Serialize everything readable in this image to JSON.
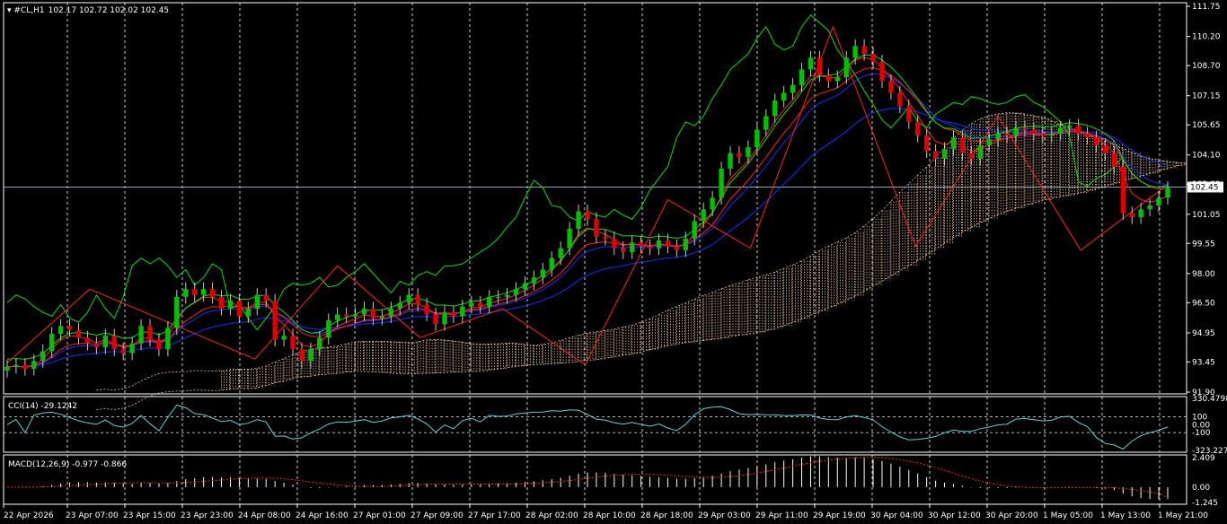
{
  "header": {
    "symbol_label": "#CL,H1",
    "ohlc": "102.17 102.72 102.02 102.45"
  },
  "main_pane": {
    "price_axis_labels": [
      "111.75",
      "110.20",
      "108.70",
      "107.15",
      "105.65",
      "104.10",
      "102.60",
      "101.05",
      "99.55",
      "98.00",
      "96.50",
      "94.95",
      "93.45",
      "91.90"
    ],
    "current_price_label": "102.45"
  },
  "cci_pane": {
    "label": "CCI(14) -29.1242",
    "axis_labels": [
      "330.4798",
      "100",
      "0.00",
      "-100",
      "-323.227"
    ]
  },
  "macd_pane": {
    "label": "MACD(12,26,9) -0.977 -0.866",
    "axis_labels": [
      "2.409",
      "0.00",
      "-1.245"
    ]
  },
  "time_axis_labels": [
    "22 Apr 2026",
    "23 Apr 07:00",
    "23 Apr 15:00",
    "23 Apr 23:00",
    "24 Apr 08:00",
    "24 Apr 16:00",
    "27 Apr 01:00",
    "27 Apr 09:00",
    "27 Apr 17:00",
    "28 Apr 02:00",
    "28 Apr 10:00",
    "28 Apr 18:00",
    "29 Apr 03:00",
    "29 Apr 11:00",
    "29 Apr 19:00",
    "30 Apr 04:00",
    "30 Apr 12:00",
    "30 Apr 20:00",
    "1 May 05:00",
    "1 May 13:00",
    "1 May 21:00"
  ],
  "colors": {
    "background": "#000000",
    "grid": "#ffffff",
    "bull_candle": "#00c000",
    "bear_candle": "#e00000",
    "chikou_green": "#00e000",
    "red_line": "#ff2020",
    "blue_line": "#1030ff",
    "cloud": "#f4c89a",
    "cci_line": "#5fd3d3",
    "macd_hist": "#ffffff",
    "macd_signal": "#ff2020"
  },
  "chart_data": {
    "type": "candlestick",
    "title": "#CL,H1",
    "timeframe": "H1",
    "ylim": [
      91.9,
      111.75
    ],
    "last_price": 102.45,
    "ohlc_last": {
      "open": 102.17,
      "high": 102.72,
      "low": 102.02,
      "close": 102.45
    },
    "zigzag_price_points": [
      93.4,
      97.2,
      95.4,
      93.6,
      98.4,
      94.7,
      96.2,
      93.3,
      101.8,
      99.3,
      110.7,
      99.4,
      106.1,
      99.2,
      102.4
    ],
    "closes": [
      93.2,
      93.3,
      93.1,
      93.5,
      94.0,
      94.9,
      95.3,
      95.1,
      94.7,
      94.4,
      94.2,
      94.8,
      94.1,
      93.9,
      94.4,
      95.3,
      94.6,
      94.1,
      95.2,
      96.8,
      97.2,
      96.9,
      97.2,
      96.8,
      96.2,
      96.6,
      95.8,
      96.2,
      96.9,
      96.6,
      94.6,
      94.8,
      94.1,
      93.5,
      94.1,
      94.7,
      95.6,
      95.9,
      95.8,
      95.9,
      96.2,
      95.7,
      95.8,
      96.2,
      96.5,
      96.9,
      96.4,
      95.9,
      95.4,
      96.0,
      95.8,
      96.3,
      96.5,
      96.3,
      96.8,
      96.8,
      96.9,
      97.2,
      97.5,
      97.8,
      98.2,
      98.8,
      99.3,
      100.3,
      101.2,
      100.8,
      99.9,
      99.8,
      99.3,
      99.1,
      99.6,
      99.4,
      99.3,
      99.7,
      99.4,
      99.2,
      99.8,
      100.7,
      101.3,
      101.9,
      103.4,
      104.2,
      104.0,
      104.5,
      105.4,
      106.1,
      106.9,
      107.3,
      107.7,
      108.5,
      109.1,
      108.2,
      107.9,
      108.1,
      109.1,
      109.7,
      109.3,
      108.9,
      107.9,
      107.3,
      106.6,
      105.8,
      105.1,
      104.3,
      103.9,
      104.4,
      105.0,
      104.2,
      103.9,
      104.6,
      104.9,
      105.2,
      105.1,
      105.5,
      105.4,
      105.2,
      105.1,
      105.2,
      105.5,
      105.6,
      105.2,
      105.0,
      104.6,
      104.2,
      103.5,
      101.1,
      100.9,
      101.3,
      101.5,
      101.9,
      102.4
    ],
    "cci": {
      "name": "CCI(14)",
      "last": -29.1242,
      "ylim": [
        -323.227,
        330.4798
      ],
      "levels": [
        100,
        0,
        -100
      ]
    },
    "macd": {
      "name": "MACD(12,26,9)",
      "main": -0.977,
      "signal": -0.866,
      "ylim": [
        -1.245,
        2.409
      ]
    }
  }
}
